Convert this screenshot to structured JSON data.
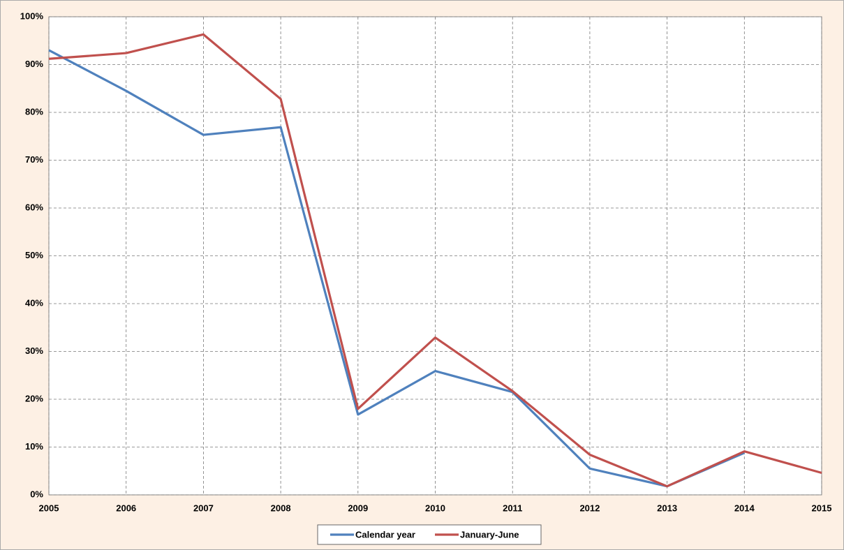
{
  "chart_data": {
    "type": "line",
    "x": [
      2005,
      2006,
      2007,
      2008,
      2009,
      2010,
      2011,
      2012,
      2013,
      2014,
      2015
    ],
    "series": [
      {
        "name": "Calendar year",
        "color": "#4f81bd",
        "values": [
          93.0,
          84.5,
          75.3,
          76.9,
          16.8,
          25.9,
          21.5,
          5.5,
          1.8,
          8.8,
          null
        ]
      },
      {
        "name": "January-June",
        "color": "#c0504d",
        "values": [
          91.2,
          92.4,
          96.3,
          82.8,
          18.0,
          32.9,
          21.7,
          8.4,
          1.8,
          9.1,
          4.6
        ]
      }
    ],
    "xlim": [
      2005,
      2015
    ],
    "xticks": [
      2005,
      2006,
      2007,
      2008,
      2009,
      2010,
      2011,
      2012,
      2013,
      2014,
      2015
    ],
    "ylim": [
      0,
      100
    ],
    "yticks": [
      {
        "value": 0,
        "label": "0%"
      },
      {
        "value": 10,
        "label": "10%"
      },
      {
        "value": 20,
        "label": "20%"
      },
      {
        "value": 30,
        "label": "30%"
      },
      {
        "value": 40,
        "label": "40%"
      },
      {
        "value": 50,
        "label": "50%"
      },
      {
        "value": 60,
        "label": "60%"
      },
      {
        "value": 70,
        "label": "70%"
      },
      {
        "value": 80,
        "label": "80%"
      },
      {
        "value": 90,
        "label": "90%"
      },
      {
        "value": 100,
        "label": "100%"
      }
    ],
    "grid": true,
    "legend": "bottom"
  }
}
